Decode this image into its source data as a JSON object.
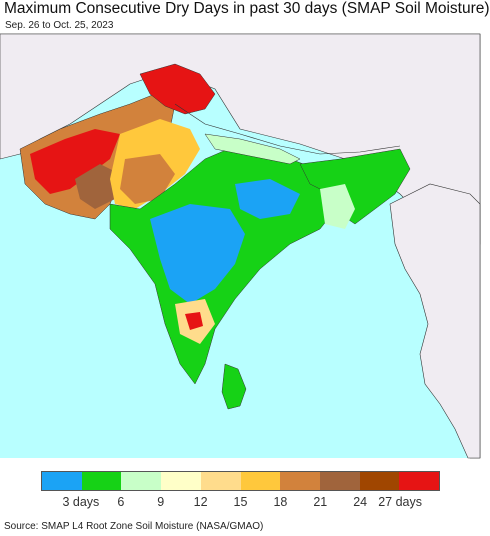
{
  "header": {
    "title": "Maximum Consecutive Dry Days in past 30 days (SMAP Soil Moisture)",
    "date_range": "Sep. 26 to Oct. 25, 2023"
  },
  "legend": {
    "colors": [
      "#1ba3f5",
      "#16d216",
      "#c8ffc8",
      "#ffffc8",
      "#ffdc8c",
      "#ffc83c",
      "#d2823c",
      "#a0643c",
      "#a04600",
      "#e61414"
    ],
    "labels": [
      "3 days",
      "6",
      "9",
      "12",
      "15",
      "18",
      "21",
      "24",
      "27 days"
    ]
  },
  "footer": {
    "source": "Source: SMAP L4 Root Zone Soil Moisture (NASA/GMAO)"
  },
  "map_colors": {
    "ocean": "#b8ffff",
    "land_outside": "#f0ecf2",
    "border": "#333333"
  }
}
